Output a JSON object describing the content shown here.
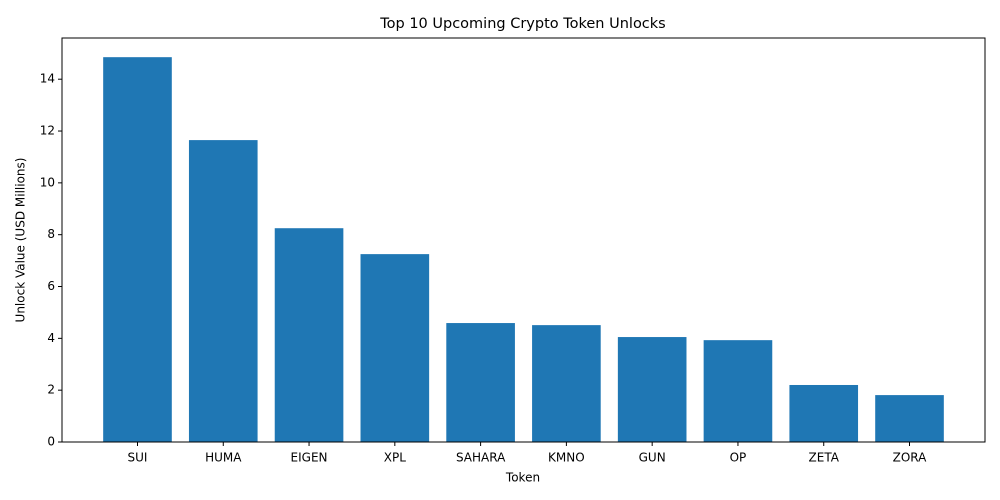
{
  "chart_data": {
    "type": "bar",
    "title": "Top 10 Upcoming Crypto Token Unlocks",
    "x_label": "Token",
    "y_label": "Unlock Value (USD Millions)",
    "categories": [
      "SUI",
      "HUMA",
      "EIGEN",
      "XPL",
      "SAHARA",
      "KMNO",
      "GUN",
      "OP",
      "ZETA",
      "ZORA"
    ],
    "values": [
      14.85,
      11.65,
      8.25,
      7.25,
      4.59,
      4.51,
      4.05,
      3.93,
      2.2,
      1.81
    ],
    "color": "#1f77b4",
    "ylim": [
      0,
      15.59
    ],
    "yticks": [
      0,
      2,
      4,
      6,
      8,
      10,
      12,
      14
    ],
    "grid": false
  }
}
